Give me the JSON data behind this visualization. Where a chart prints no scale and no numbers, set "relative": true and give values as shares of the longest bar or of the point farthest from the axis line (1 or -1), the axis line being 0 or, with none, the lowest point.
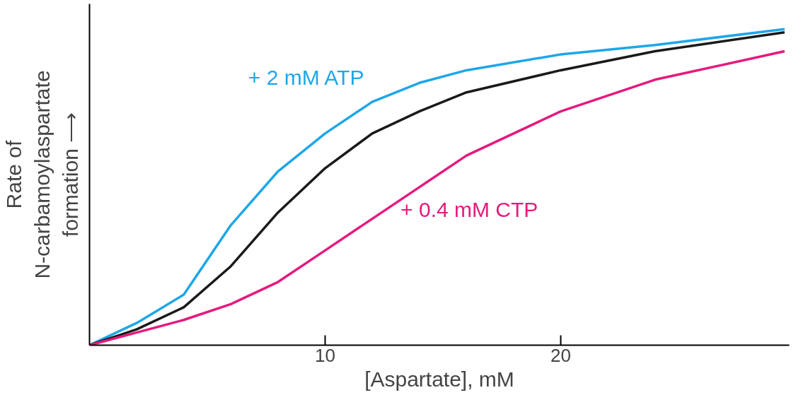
{
  "chart_data": {
    "type": "line",
    "relative": true,
    "xlabel": "[Aspartate], mM",
    "ylabel": "Rate of\nN-carbamoylaspartate\nformation ⟶",
    "xlim": [
      0,
      29.7
    ],
    "xticks": [
      10,
      20
    ],
    "grid": false,
    "tick_labels": "x",
    "marker": "none",
    "line_style": "solid",
    "x": [
      0,
      2,
      4,
      6,
      8,
      10,
      12,
      14,
      16,
      20,
      24,
      29.5
    ],
    "series": [
      {
        "name": "+ 2 mM ATP",
        "color": "#1ea7e8",
        "values": [
          0,
          0.07,
          0.16,
          0.38,
          0.55,
          0.67,
          0.77,
          0.83,
          0.87,
          0.92,
          0.95,
          1
        ]
      },
      {
        "color": "#1a1a1a",
        "values": [
          0,
          0.05,
          0.12,
          0.25,
          0.42,
          0.56,
          0.67,
          0.74,
          0.8,
          0.87,
          0.93,
          0.99
        ]
      },
      {
        "name": "+ 0.4 mM CTP",
        "color": "#e6197d",
        "values": [
          0,
          0.04,
          0.08,
          0.13,
          0.2,
          0.3,
          0.4,
          0.5,
          0.6,
          0.74,
          0.84,
          0.93
        ]
      }
    ]
  }
}
